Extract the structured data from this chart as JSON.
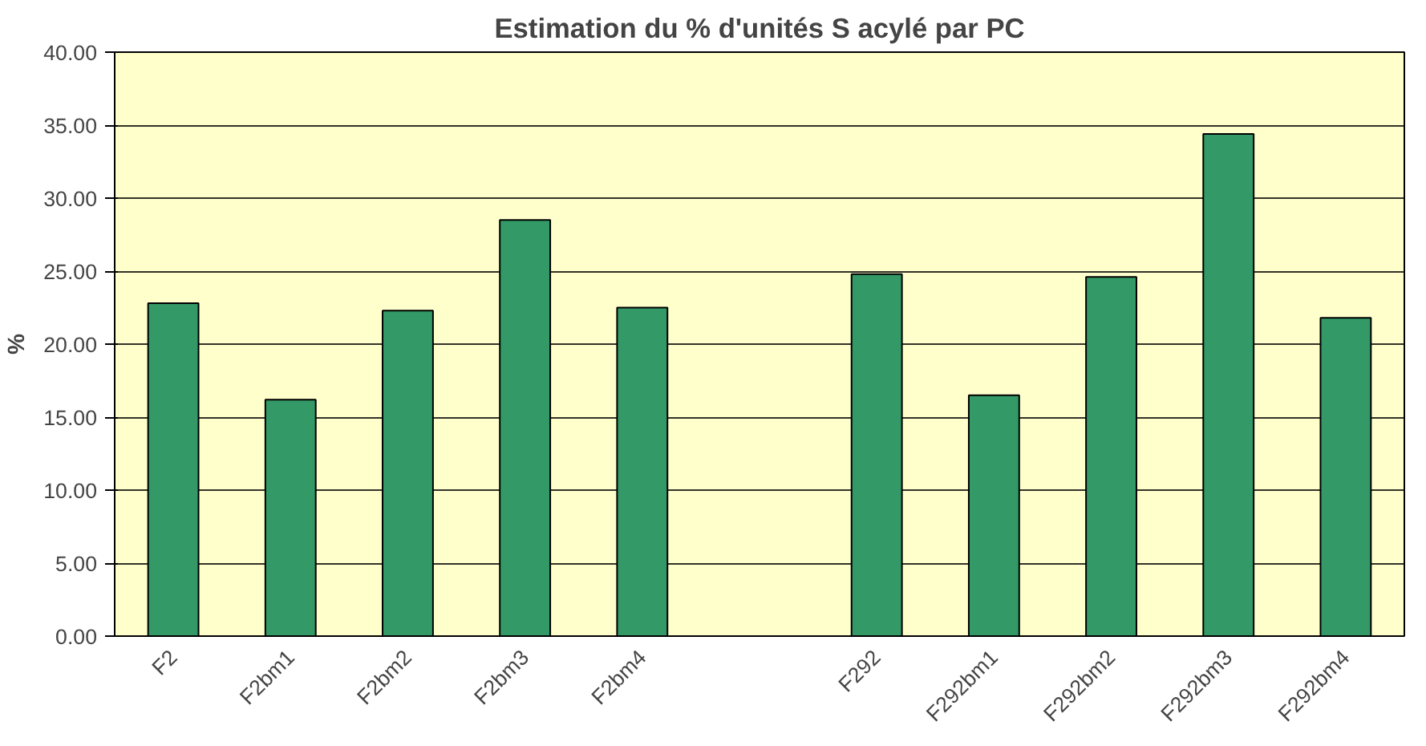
{
  "chart_data": {
    "type": "bar",
    "title": "Estimation du % d'unités S acylé par PC",
    "ylabel": "%",
    "categories": [
      "F2",
      "F2bm1",
      "F2bm2",
      "F2bm3",
      "F2bm4",
      null,
      "F292",
      "F292bm1",
      "F292bm2",
      "F292bm3",
      "F292bm4"
    ],
    "values": [
      22.8,
      16.2,
      22.3,
      28.5,
      22.5,
      null,
      24.8,
      16.5,
      24.6,
      34.4,
      21.8
    ],
    "color": "#339966",
    "ylim": [
      0,
      40
    ],
    "yticks": [
      {
        "value": 0,
        "label": "0.00"
      },
      {
        "value": 5,
        "label": "5.00"
      },
      {
        "value": 10,
        "label": "10.00"
      },
      {
        "value": 15,
        "label": "15.00"
      },
      {
        "value": 20,
        "label": "20.00"
      },
      {
        "value": 25,
        "label": "25.00"
      },
      {
        "value": 30,
        "label": "30.00"
      },
      {
        "value": 35,
        "label": "35.00"
      },
      {
        "value": 40,
        "label": "40.00"
      }
    ],
    "grid": "y"
  }
}
